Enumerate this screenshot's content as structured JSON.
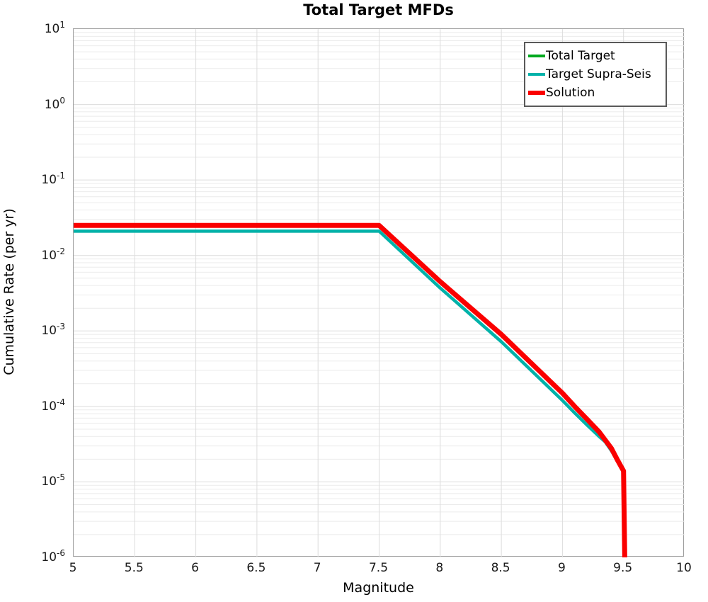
{
  "title": "Total Target MFDs",
  "axes": {
    "xlabel": "Magnitude",
    "ylabel": "Cumulative Rate (per yr)",
    "xtick_labels": [
      "5",
      "5.5",
      "6",
      "6.5",
      "7",
      "7.5",
      "8",
      "8.5",
      "9",
      "9.5",
      "10"
    ],
    "xtick_values": [
      5,
      5.5,
      6,
      6.5,
      7,
      7.5,
      8,
      8.5,
      9,
      9.5,
      10
    ],
    "ytick_base": "10",
    "ytick_exponents": [
      "1",
      "0",
      "-1",
      "-2",
      "-3",
      "-4",
      "-5",
      "-6"
    ],
    "ytick_exponent_values": [
      1,
      0,
      -1,
      -2,
      -3,
      -4,
      -5,
      -6
    ]
  },
  "legend": {
    "items": [
      {
        "label": "Total Target",
        "color": "#02a91f",
        "thickness": 4
      },
      {
        "label": "Target Supra-Seis",
        "color": "#00b2a9",
        "thickness": 4
      },
      {
        "label": "Solution",
        "color": "#fa0000",
        "thickness": 6
      }
    ]
  },
  "colors": {
    "spine": "#a0a0a0",
    "grid_major": "#dcdcdc",
    "grid_minor": "#ebebeb",
    "background": "#ffffff"
  },
  "chart_data": {
    "type": "line",
    "title": "Total Target MFDs",
    "xlabel": "Magnitude",
    "ylabel": "Cumulative Rate (per yr)",
    "xlim": [
      5,
      10
    ],
    "ylim": [
      1e-06,
      10
    ],
    "yscale": "log",
    "grid": true,
    "legend_position": "top-right",
    "series": [
      {
        "name": "Total Target",
        "color": "#02a91f",
        "stroke_width": 3.5,
        "note": "coincides with Solution curve, hidden beneath it",
        "points": [
          [
            5.0,
            0.025
          ],
          [
            7.5,
            0.025
          ],
          [
            8.0,
            0.0045
          ],
          [
            8.5,
            0.0009
          ],
          [
            9.0,
            0.00015
          ],
          [
            9.1,
            0.0001
          ],
          [
            9.2,
            6.8e-05
          ],
          [
            9.3,
            4.6e-05
          ],
          [
            9.4,
            2.8e-05
          ],
          [
            9.45,
            1.95e-05
          ],
          [
            9.5,
            1.4e-05
          ],
          [
            9.51,
            1e-06
          ]
        ]
      },
      {
        "name": "Target Supra-Seis",
        "color": "#00b2a9",
        "stroke_width": 4.5,
        "note": "slightly below the Solution curve, merges with it near M9.4",
        "points": [
          [
            5.0,
            0.021
          ],
          [
            7.5,
            0.021
          ],
          [
            8.0,
            0.0037
          ],
          [
            8.5,
            0.00072
          ],
          [
            9.0,
            0.00012
          ],
          [
            9.1,
            8.2e-05
          ],
          [
            9.2,
            5.7e-05
          ],
          [
            9.3,
            4e-05
          ],
          [
            9.35,
            3.4e-05
          ],
          [
            9.4,
            2.6e-05
          ],
          [
            9.45,
            1.9e-05
          ],
          [
            9.5,
            1.35e-05
          ],
          [
            9.51,
            1e-06
          ]
        ]
      },
      {
        "name": "Solution",
        "color": "#fa0000",
        "stroke_width": 7,
        "note": "flat to M7.5 then log-linear decay, near-vertical drop at M9.5",
        "points": [
          [
            5.0,
            0.025
          ],
          [
            7.5,
            0.025
          ],
          [
            8.0,
            0.0045
          ],
          [
            8.5,
            0.0009
          ],
          [
            9.0,
            0.00015
          ],
          [
            9.1,
            0.0001
          ],
          [
            9.2,
            6.8e-05
          ],
          [
            9.3,
            4.6e-05
          ],
          [
            9.4,
            2.8e-05
          ],
          [
            9.45,
            1.95e-05
          ],
          [
            9.5,
            1.4e-05
          ],
          [
            9.51,
            1e-06
          ]
        ]
      }
    ]
  }
}
